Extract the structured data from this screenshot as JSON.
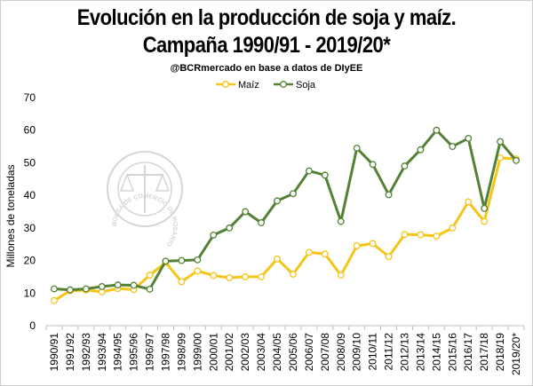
{
  "chart_data": {
    "type": "line",
    "title_line1": "Evolución en la producción de soja y maíz.",
    "title_line2": "Campaña 1990/91 - 2019/20*",
    "subtitle": "@BCRmercado en base a datos de DIyEE",
    "ylabel": "Millones de toneladas",
    "ylim": [
      0,
      70
    ],
    "yticks": [
      "0",
      "10",
      "20",
      "30",
      "40",
      "50",
      "60",
      "70"
    ],
    "legend_position": "top-center",
    "grid": false,
    "watermark_text": "BOLSA DE COMERCIO DE ROSARIO",
    "categories": [
      "1990/91",
      "1991/92",
      "1992/93",
      "1993/94",
      "1994/95",
      "1995/96",
      "1996/97",
      "1997/98",
      "1998/99",
      "1999/00",
      "2000/01",
      "2001/02",
      "2002/03",
      "2003/04",
      "2004/05",
      "2005/06",
      "2006/07",
      "2007/08",
      "2008/09",
      "2009/10",
      "2010/11",
      "2011/12",
      "2012/13",
      "2013/14",
      "2014/15",
      "2015/16",
      "2016/17",
      "2017/18",
      "2018/19",
      "2019/20*"
    ],
    "series": [
      {
        "name": "Maíz",
        "color": "#f5c518",
        "values": [
          7.7,
          10.7,
          10.9,
          10.4,
          11.4,
          11.1,
          15.5,
          19.4,
          13.5,
          16.8,
          15.4,
          14.7,
          15.0,
          15.0,
          20.5,
          15.8,
          22.5,
          22.0,
          15.5,
          24.5,
          25.2,
          21.2,
          28.0,
          27.9,
          27.5,
          30.0,
          38.0,
          32.0,
          51.5,
          51.2
        ]
      },
      {
        "name": "Soja",
        "color": "#538135",
        "values": [
          11.3,
          11.0,
          11.3,
          12.0,
          12.5,
          12.4,
          11.2,
          19.8,
          20.0,
          20.2,
          27.8,
          30.0,
          35.0,
          31.6,
          38.3,
          40.5,
          47.5,
          46.2,
          32.0,
          54.5,
          49.5,
          40.2,
          49.0,
          54.0,
          60.0,
          55.0,
          57.5,
          36.0,
          56.5,
          50.7
        ]
      }
    ]
  }
}
